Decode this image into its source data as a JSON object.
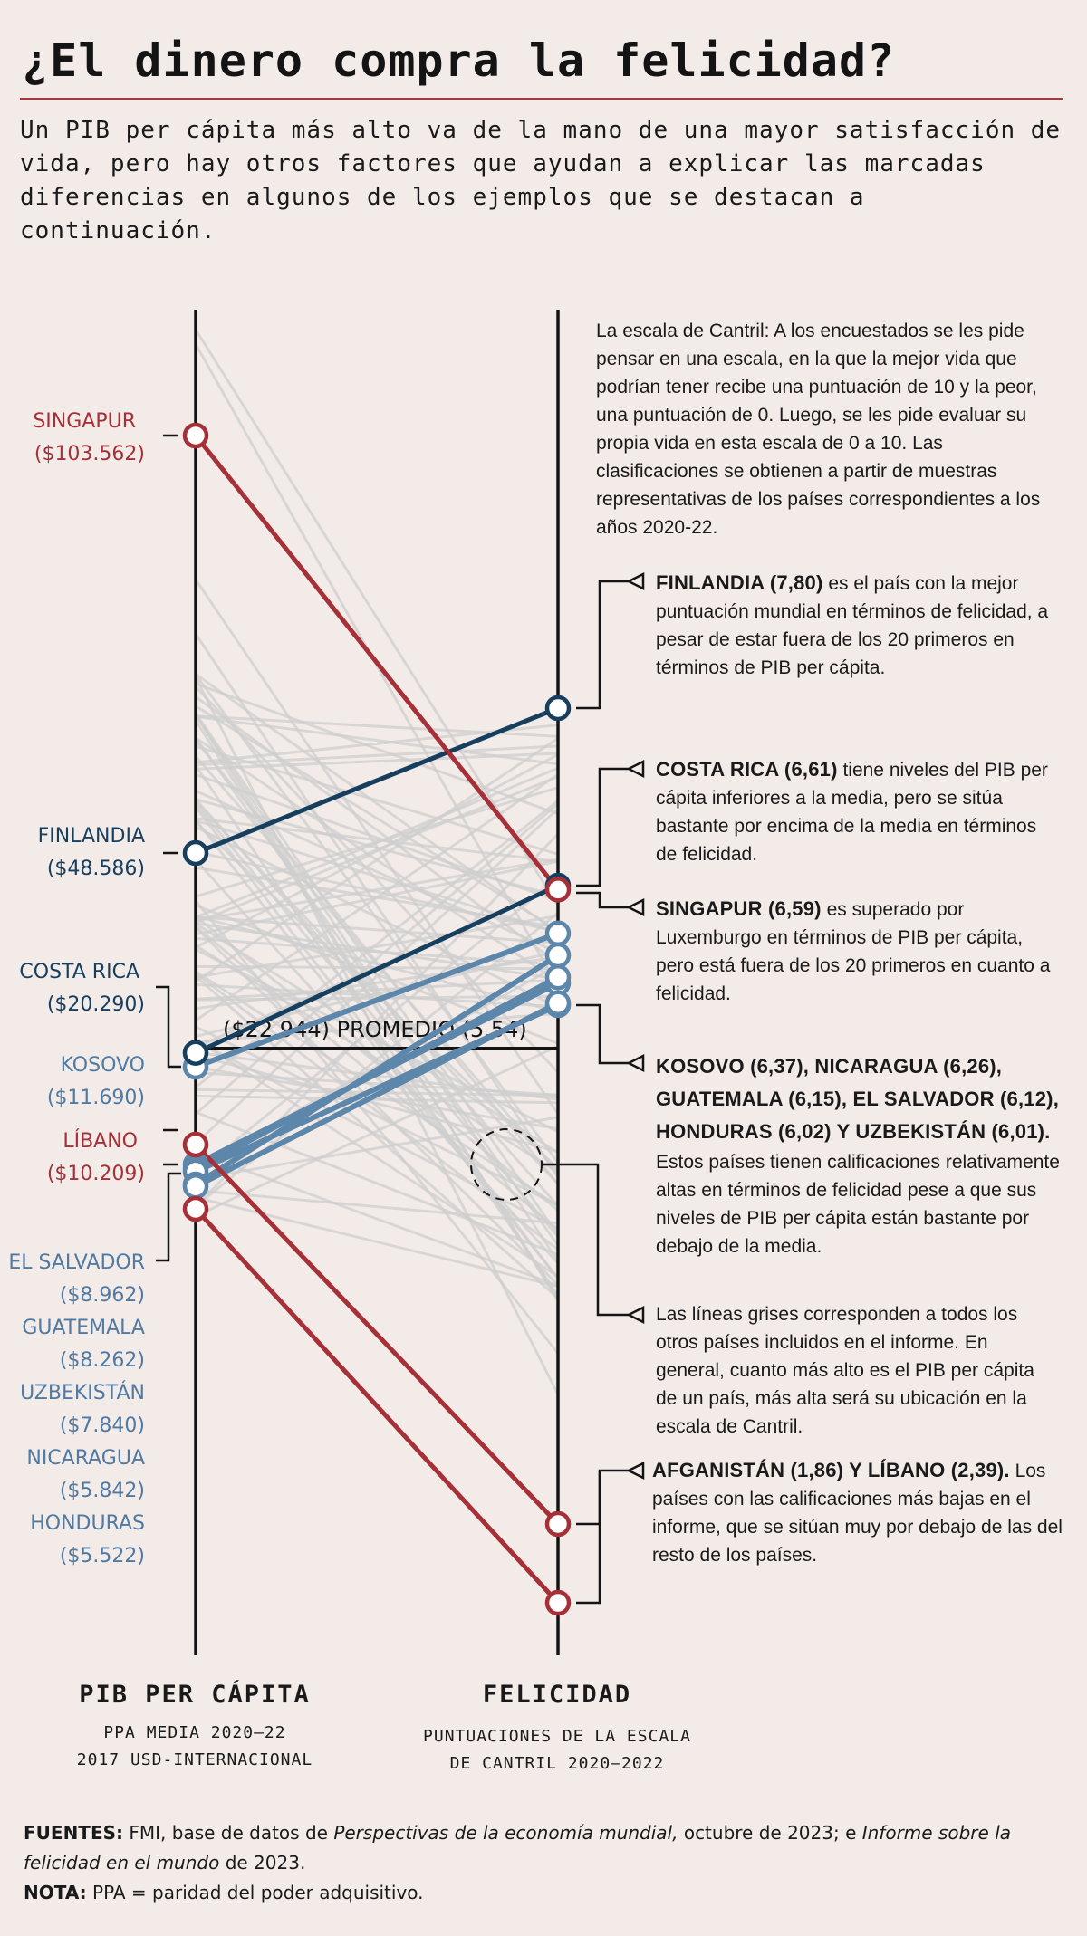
{
  "title": "¿El dinero compra la felicidad?",
  "subtitle": "Un PIB per cápita más alto va de la mano de una mayor satisfacción de vida, pero hay otros factores que ayudan a explicar las marcadas diferencias en algunos de los ejemplos que se destacan a continuación.",
  "colors": {
    "red": "#a63038",
    "dark_blue": "#163e5e",
    "light_blue": "#5d86ab",
    "gray": "#cfcfcf",
    "background": "#f3ebe8"
  },
  "axes": {
    "left": {
      "title": "PIB PER CÁPITA",
      "sub1": "PPA MEDIA 2020–22",
      "sub2": "2017 USD-INTERNACIONAL"
    },
    "right": {
      "title": "FELICIDAD",
      "sub1": "PUNTUACIONES DE LA ESCALA",
      "sub2": "DE CANTRIL 2020–2022"
    }
  },
  "average": {
    "label": "($22.944) PROMEDIO (5,54)",
    "gdp": 22944,
    "happiness": 5.54
  },
  "left_labels": {
    "singapur": {
      "name": "SINGAPUR",
      "value": "($103.562)"
    },
    "finlandia": {
      "name": "FINLANDIA",
      "value": "($48.586)"
    },
    "costa_rica": {
      "name": "COSTA RICA",
      "value": "($20.290)"
    },
    "kosovo": {
      "name": "KOSOVO",
      "value": "($11.690)"
    },
    "libano": {
      "name": "LÍBANO",
      "value": "($10.209)"
    },
    "el_salvador": {
      "name": "EL SALVADOR",
      "value": "($8.962)"
    },
    "guatemala": {
      "name": "GUATEMALA",
      "value": "($8.262)"
    },
    "uzbekistan": {
      "name": "UZBEKISTÁN",
      "value": "($7.840)"
    },
    "nicaragua": {
      "name": "NICARAGUA",
      "value": "($5.842)"
    },
    "honduras": {
      "name": "HONDURAS",
      "value": "($5.522)"
    }
  },
  "notes": {
    "cantril": "La escala de Cantril: A los encuestados se les pide pensar en una escala, en la que la mejor vida que podrían tener recibe una puntuación de 10 y la peor, una puntuación de 0. Luego, se les pide evaluar su propia vida en esta escala de 0 a 10. Las clasificaciones se obtienen a partir de muestras representativas de los países correspondientes a los años 2020-22.",
    "finlandia_head": "FINLANDIA (7,80)",
    "finlandia_text": "es el país con la mejor puntuación mundial en términos de felicidad, a pesar de estar fuera de los 20 primeros en términos de PIB per cápita.",
    "costa_rica_head": "COSTA RICA (6,61)",
    "costa_rica_text": "tiene niveles del PIB per cápita inferiores a la media, pero se sitúa bastante por encima de la media en términos de felicidad.",
    "singapur_head": "SINGAPUR (6,59)",
    "singapur_text": "es superado por Luxemburgo en términos de PIB per cápita, pero está fuera de los 20 primeros en cuanto a felicidad.",
    "group_head": "KOSOVO (6,37), NICARAGUA (6,26), GUATEMALA (6,15), EL SALVADOR (6,12), HONDURAS (6,02) Y UZBEKISTÁN (6,01).",
    "group_text": "Estos países tienen calificaciones relativamente altas en términos de felicidad pese a que sus niveles de PIB per cápita están bastante por debajo de la media.",
    "gray_text": "Las líneas grises corresponden a todos los otros países incluidos en el informe. En general, cuanto más alto es el PIB per cápita de un país, más alta será su ubicación en la escala de Cantril.",
    "low_head": "AFGANISTÁN (1,86) Y LÍBANO (2,39).",
    "low_text": "Los países con las calificaciones más bajas en el informe, que se sitúan muy por debajo de las del resto de los países."
  },
  "sources": {
    "label": "FUENTES:",
    "text_a": "FMI, base de datos de",
    "italic_a": "Perspectivas de la economía mundial,",
    "text_b": "octubre de 2023; e",
    "italic_b": "Informe sobre la felicidad en el mundo",
    "text_c": "de 2023.",
    "note_label": "NOTA:",
    "note_text": "PPA = paridad del poder adquisitivo."
  },
  "chart_data": {
    "type": "slope",
    "left_axis": "PIB per cápita (PPA, USD-internacional 2017)",
    "right_axis": "Felicidad (escala de Cantril)",
    "highlighted": [
      {
        "name": "Singapur",
        "gdp": 103562,
        "happiness": 6.59,
        "color": "red"
      },
      {
        "name": "Finlandia",
        "gdp": 48586,
        "happiness": 7.8,
        "color": "dark_blue"
      },
      {
        "name": "Costa Rica",
        "gdp": 20290,
        "happiness": 6.61,
        "color": "dark_blue"
      },
      {
        "name": "Kosovo",
        "gdp": 11690,
        "happiness": 6.37,
        "color": "light_blue"
      },
      {
        "name": "Líbano",
        "gdp": 10209,
        "happiness": 2.39,
        "color": "red"
      },
      {
        "name": "El Salvador",
        "gdp": 8962,
        "happiness": 6.12,
        "color": "light_blue"
      },
      {
        "name": "Guatemala",
        "gdp": 8262,
        "happiness": 6.15,
        "color": "light_blue"
      },
      {
        "name": "Uzbekistán",
        "gdp": 7840,
        "happiness": 6.01,
        "color": "light_blue"
      },
      {
        "name": "Nicaragua",
        "gdp": 5842,
        "happiness": 6.26,
        "color": "light_blue"
      },
      {
        "name": "Honduras",
        "gdp": 5522,
        "happiness": 6.02,
        "color": "light_blue"
      },
      {
        "name": "Afganistán",
        "gdp": 2000,
        "happiness": 1.86,
        "color": "red"
      }
    ],
    "average": {
      "gdp": 22944,
      "happiness": 5.54
    }
  }
}
